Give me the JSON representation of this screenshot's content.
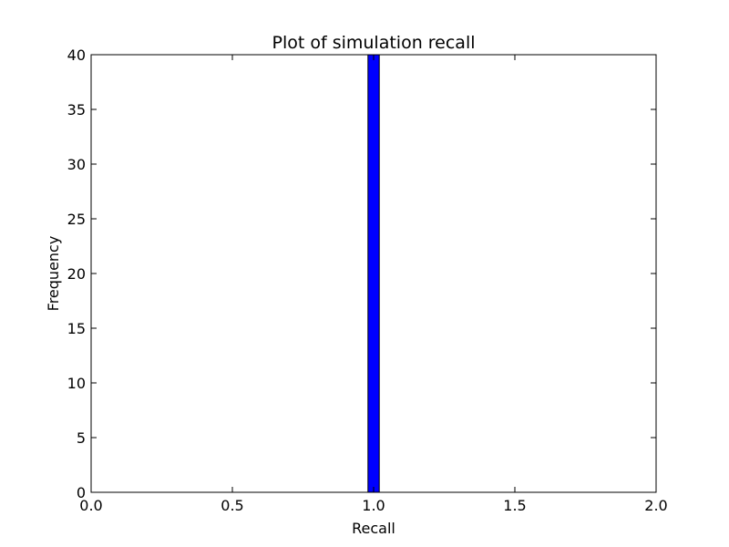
{
  "chart_data": {
    "type": "bar",
    "title": "Plot of simulation recall",
    "xlabel": "Recall",
    "ylabel": "Frequency",
    "xlim": [
      0.0,
      2.0
    ],
    "ylim": [
      0,
      40
    ],
    "xticks": [
      "0.0",
      "0.5",
      "1.0",
      "1.5",
      "2.0"
    ],
    "yticks": [
      "0",
      "5",
      "10",
      "15",
      "20",
      "25",
      "30",
      "35",
      "40"
    ],
    "bins": [
      {
        "x0": 0.98,
        "x1": 1.02,
        "value": 40
      }
    ],
    "bar_color": "#0000ff",
    "grid": false
  }
}
